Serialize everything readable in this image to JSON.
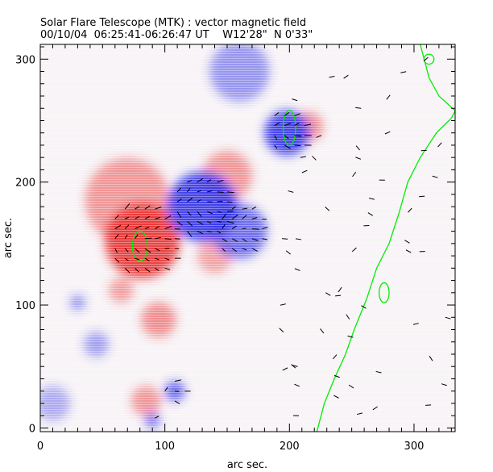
{
  "chart_data": {
    "type": "heatmap",
    "title": "Solar Flare Telescope (MTK) : vector magnetic field",
    "subtitle": "00/10/04  06:25:41-06:26:47 UT    W12'28\"  N 0'33\"",
    "xlabel": "arc sec.",
    "ylabel": "arc sec.",
    "xlim": [
      0,
      333
    ],
    "ylim": [
      -3,
      312
    ],
    "xticks": [
      0,
      100,
      200,
      300
    ],
    "yticks": [
      0,
      100,
      200,
      300
    ],
    "colors": {
      "positive": "#e83030",
      "negative": "#3030e8",
      "contour": "#00ee00",
      "vectors": "#000000"
    },
    "regions": [
      {
        "polarity": "positive",
        "x": 82,
        "y": 152,
        "r": 30,
        "strength": 1.0
      },
      {
        "polarity": "positive",
        "x": 70,
        "y": 185,
        "r": 34,
        "strength": 0.45
      },
      {
        "polarity": "positive",
        "x": 150,
        "y": 205,
        "r": 20,
        "strength": 0.45
      },
      {
        "polarity": "positive",
        "x": 95,
        "y": 88,
        "r": 14,
        "strength": 0.5
      },
      {
        "polarity": "positive",
        "x": 65,
        "y": 112,
        "r": 10,
        "strength": 0.4
      },
      {
        "polarity": "positive",
        "x": 85,
        "y": 22,
        "r": 12,
        "strength": 0.45
      },
      {
        "polarity": "positive",
        "x": 215,
        "y": 245,
        "r": 12,
        "strength": 0.5
      },
      {
        "polarity": "positive",
        "x": 140,
        "y": 140,
        "r": 14,
        "strength": 0.35
      },
      {
        "polarity": "negative",
        "x": 130,
        "y": 180,
        "r": 28,
        "strength": 1.0
      },
      {
        "polarity": "negative",
        "x": 198,
        "y": 240,
        "r": 18,
        "strength": 1.0
      },
      {
        "polarity": "negative",
        "x": 160,
        "y": 160,
        "r": 22,
        "strength": 0.7
      },
      {
        "polarity": "negative",
        "x": 160,
        "y": 290,
        "r": 24,
        "strength": 0.45
      },
      {
        "polarity": "negative",
        "x": 108,
        "y": 30,
        "r": 8,
        "strength": 0.8
      },
      {
        "polarity": "negative",
        "x": 90,
        "y": 6,
        "r": 6,
        "strength": 0.7
      },
      {
        "polarity": "negative",
        "x": 45,
        "y": 68,
        "r": 10,
        "strength": 0.4
      },
      {
        "polarity": "negative",
        "x": 30,
        "y": 102,
        "r": 6,
        "strength": 0.5
      },
      {
        "polarity": "negative",
        "x": 10,
        "y": 20,
        "r": 14,
        "strength": 0.3
      }
    ],
    "contour": [
      [
        222,
        -3
      ],
      [
        228,
        20
      ],
      [
        236,
        40
      ],
      [
        245,
        60
      ],
      [
        252,
        80
      ],
      [
        262,
        105
      ],
      [
        270,
        130
      ],
      [
        280,
        150
      ],
      [
        288,
        175
      ],
      [
        295,
        200
      ],
      [
        305,
        220
      ],
      [
        318,
        240
      ],
      [
        330,
        252
      ],
      [
        333,
        258
      ],
      [
        320,
        270
      ],
      [
        312,
        285
      ],
      [
        305,
        312
      ]
    ],
    "loops": [
      {
        "x": 80,
        "y": 148,
        "rx": 6,
        "ry": 12
      },
      {
        "x": 200,
        "y": 244,
        "rx": 5,
        "ry": 14
      },
      {
        "x": 276,
        "y": 110,
        "rx": 4,
        "ry": 8
      },
      {
        "x": 312,
        "y": 300,
        "rx": 4,
        "ry": 4
      }
    ]
  }
}
